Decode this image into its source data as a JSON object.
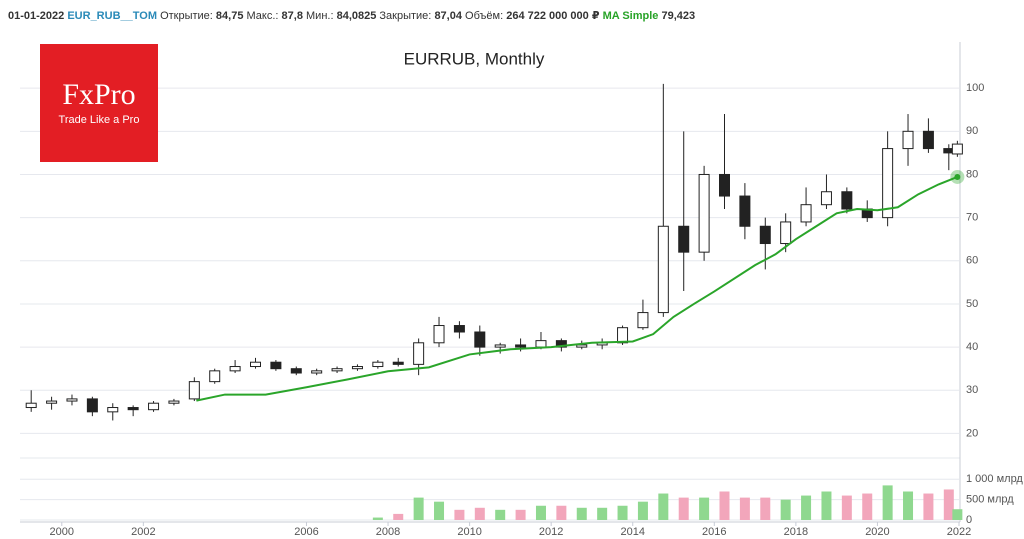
{
  "header": {
    "date": "01-01-2022",
    "symbol": "EUR_RUB__TOM",
    "fields": [
      {
        "label": "Открытие:",
        "value": "84,75"
      },
      {
        "label": "Макс.:",
        "value": "87,8"
      },
      {
        "label": "Мин.:",
        "value": "84,0825"
      },
      {
        "label": "Закрытие:",
        "value": "87,04"
      },
      {
        "label": "Объём:",
        "value": "264 722 000 000 ₽"
      }
    ],
    "ma_label": "MA Simple",
    "ma_value": "79,423"
  },
  "logo": {
    "name": "FxPro",
    "slogan": "Trade Like a Pro"
  },
  "chart_data": {
    "type": "candlestick",
    "title": "EURRUB, Monthly",
    "x": [
      1999.25,
      1999.75,
      2000.25,
      2000.75,
      2001.25,
      2001.75,
      2002.25,
      2002.75,
      2003.25,
      2003.75,
      2004.25,
      2004.75,
      2005.25,
      2005.75,
      2006.25,
      2006.75,
      2007.25,
      2007.75,
      2008.25,
      2008.75,
      2009.25,
      2009.75,
      2010.25,
      2010.75,
      2011.25,
      2011.75,
      2012.25,
      2012.75,
      2013.25,
      2013.75,
      2014.25,
      2014.75,
      2015.25,
      2015.75,
      2016.25,
      2016.75,
      2017.25,
      2017.75,
      2018.25,
      2018.75,
      2019.25,
      2019.75,
      2020.25,
      2020.75,
      2021.25,
      2021.75,
      2021.96
    ],
    "open": [
      26,
      27,
      27.5,
      28,
      25,
      26,
      25.5,
      27,
      28,
      32,
      34.5,
      35.5,
      36.5,
      35,
      34,
      34.5,
      35,
      35.5,
      36.5,
      36,
      41,
      45,
      43.5,
      40,
      40.5,
      40,
      41.5,
      40,
      40.5,
      41,
      44.5,
      48,
      68,
      62,
      80,
      75,
      68,
      64,
      69,
      73,
      76,
      72,
      70,
      86,
      90,
      86,
      84.75
    ],
    "high": [
      30,
      28.5,
      29,
      28.5,
      27,
      26.5,
      27.5,
      28,
      33,
      35,
      37,
      37.5,
      37,
      35.5,
      35,
      35.5,
      36,
      37,
      37.5,
      42,
      47,
      46,
      45,
      41,
      42,
      43.5,
      42,
      41.5,
      42,
      45,
      51,
      101,
      90,
      82,
      94,
      78,
      70,
      71,
      77,
      80,
      77,
      74,
      90,
      94,
      93,
      87,
      87.8
    ],
    "low": [
      25,
      25.5,
      26.5,
      24,
      23,
      24,
      25,
      26.5,
      27.5,
      31.5,
      34,
      35,
      34.5,
      33.5,
      33.5,
      34,
      34.5,
      35,
      35.5,
      33.5,
      40,
      42,
      38,
      38.5,
      39,
      39.5,
      39,
      39.5,
      39.5,
      40.5,
      44,
      47,
      53,
      60,
      72,
      65,
      58,
      62,
      68,
      72,
      71,
      69,
      68,
      82,
      85,
      81,
      84.0825
    ],
    "close": [
      27,
      27.5,
      28,
      25,
      26,
      25.5,
      27,
      27.5,
      32,
      34.5,
      35.5,
      36.5,
      35,
      34,
      34.5,
      35,
      35.5,
      36.5,
      36,
      41,
      45,
      43.5,
      40,
      40.5,
      40,
      41.5,
      40,
      40.5,
      41,
      44.5,
      48,
      68,
      62,
      80,
      75,
      68,
      64,
      69,
      73,
      76,
      72,
      70,
      86,
      90,
      86,
      85,
      87.04
    ],
    "up_color": "#ffffff",
    "down_color": "#222222",
    "xlim": [
      1999,
      2022
    ],
    "xticks": [
      2000,
      2002,
      2006,
      2008,
      2010,
      2012,
      2014,
      2016,
      2018,
      2020,
      2022
    ],
    "ylim": [
      15,
      110
    ],
    "yticks": [
      20,
      30,
      40,
      50,
      60,
      70,
      80,
      90,
      100
    ],
    "grid": true,
    "ma": {
      "color": "#2aa52a",
      "x": [
        2003.3,
        2004,
        2005,
        2006,
        2007,
        2008,
        2009,
        2010,
        2011,
        2012,
        2013,
        2014,
        2014.5,
        2015,
        2015.5,
        2016,
        2017,
        2017.5,
        2018,
        2018.5,
        2019,
        2019.5,
        2020,
        2020.5,
        2021,
        2021.5,
        2021.96
      ],
      "values": [
        27.6,
        29,
        29,
        30.7,
        32.5,
        34.4,
        35.3,
        38.3,
        39.5,
        40,
        41,
        41.3,
        43,
        47,
        50,
        52.9,
        59,
        61.5,
        65,
        68,
        71,
        72,
        71.7,
        72.4,
        75.4,
        77.7,
        79.423
      ]
    },
    "volume": {
      "up_color": "#8fd88f",
      "down_color": "#f2a6bb",
      "values": [
        null,
        null,
        null,
        null,
        null,
        null,
        null,
        null,
        null,
        null,
        null,
        null,
        null,
        null,
        null,
        null,
        null,
        60,
        150,
        550,
        450,
        250,
        300,
        250,
        250,
        350,
        350,
        300,
        300,
        350,
        450,
        650,
        550,
        550,
        700,
        550,
        550,
        500,
        600,
        700,
        600,
        650,
        850,
        700,
        650,
        750,
        264.722
      ],
      "ylim": [
        0,
        1400
      ],
      "yticks": [
        {
          "value": 1000,
          "label": "1 000 млрд"
        },
        {
          "value": 500,
          "label": "500 млрд"
        },
        0
      ]
    }
  }
}
